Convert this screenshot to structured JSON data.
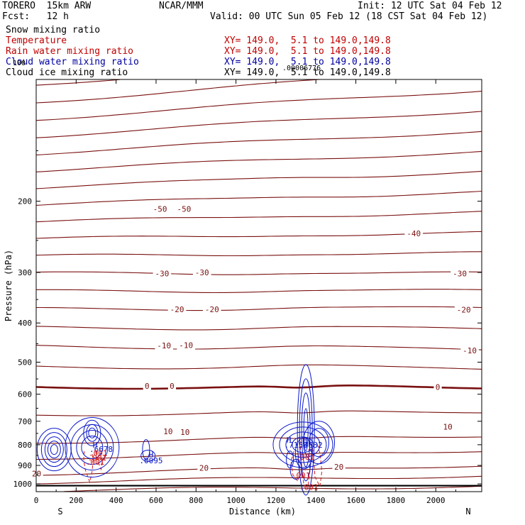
{
  "header": {
    "model": "TORERO  15km ARW",
    "institution": "NCAR/MMM",
    "init": "Init: 12 UTC Sat 04 Feb 12",
    "fcst": "Fcst:   12 h",
    "valid": "Valid: 00 UTC Sun 05 Feb 12 (18 CST Sat 04 Feb 12)",
    "fields": [
      {
        "label": "Snow mixing ratio",
        "color": "#000000",
        "xy": "",
        "overlay": ""
      },
      {
        "label": "Temperature",
        "color": "#c00000",
        "xy": "XY= 149.0,  5.1 to 149.0,149.8",
        "overlay": ""
      },
      {
        "label": "Rain water mixing ratio",
        "color": "#c00000",
        "xy": "XY= 149.0,  5.1 to 149.0,149.8",
        "overlay": ""
      },
      {
        "label": "Cloud water mixing ratio",
        "color": "#0000a0",
        "xy": "XY= 149.0,  5.1 to 149.0,149.8",
        "overlay": "100"
      },
      {
        "label": "Cloud ice mixing ratio",
        "color": "#000000",
        "xy": "XY= 149.0,  5.1 to 149.0,149.8",
        "overlay": ".00006776"
      }
    ]
  },
  "chart_data": {
    "type": "contour-cross-section",
    "xlabel": "Distance (km)",
    "ylabel": "Pressure (hPa)",
    "xlim": [
      0,
      2230
    ],
    "ylim": [
      1045,
      100
    ],
    "y_scale": "log",
    "x_ticks": [
      0,
      200,
      400,
      600,
      800,
      1000,
      1200,
      1400,
      1600,
      1800,
      2000
    ],
    "y_ticks": [
      200,
      300,
      400,
      500,
      600,
      700,
      800,
      900,
      1000
    ],
    "x_end_labels": {
      "left": "S",
      "right": "N"
    },
    "temperature_isotherms": [
      {
        "value": 20,
        "p_left": 943,
        "p_right": 898
      },
      {
        "value": 10,
        "p_left": 788,
        "p_right": 758
      },
      {
        "value": 0,
        "p_left": 576,
        "p_right": 576
      },
      {
        "value": -10,
        "p_left": 457,
        "p_right": 465
      },
      {
        "value": -20,
        "p_left": 370,
        "p_right": 368
      },
      {
        "value": -30,
        "p_left": 302,
        "p_right": 302
      },
      {
        "value": -40,
        "p_left": 248,
        "p_right": 240
      },
      {
        "value": -50,
        "p_left": 204,
        "p_right": 190
      }
    ],
    "temperature_labels": [
      {
        "text": "20",
        "x": 2.0,
        "p": 943
      },
      {
        "text": "20",
        "x": 840,
        "p": 913
      },
      {
        "text": "20",
        "x": 1515,
        "p": 908
      },
      {
        "text": "10",
        "x": 660,
        "p": 742
      },
      {
        "text": "10",
        "x": 745,
        "p": 745
      },
      {
        "text": "10",
        "x": 2060,
        "p": 722
      },
      {
        "text": "0",
        "x": 555,
        "p": 573
      },
      {
        "text": "0",
        "x": 680,
        "p": 573
      },
      {
        "text": "0",
        "x": 2010,
        "p": 576
      },
      {
        "text": "-10",
        "x": 640,
        "p": 455
      },
      {
        "text": "-10",
        "x": 750,
        "p": 454
      },
      {
        "text": "-10",
        "x": 2170,
        "p": 468
      },
      {
        "text": "-20",
        "x": 705,
        "p": 370
      },
      {
        "text": "-20",
        "x": 880,
        "p": 370
      },
      {
        "text": "-20",
        "x": 2140,
        "p": 371
      },
      {
        "text": "-30",
        "x": 630,
        "p": 302
      },
      {
        "text": "-30",
        "x": 830,
        "p": 300
      },
      {
        "text": "-30",
        "x": 2120,
        "p": 302
      },
      {
        "text": "-40",
        "x": 1890,
        "p": 240
      },
      {
        "text": "-50",
        "x": 620,
        "p": 209
      },
      {
        "text": "-50",
        "x": 740,
        "p": 209
      }
    ],
    "cloud_water_labels": [
      {
        "text": "H",
        "x": 295,
        "p": 800
      },
      {
        "text": ".6678",
        "x": 325,
        "p": 820
      },
      {
        "text": "H",
        "x": 575,
        "p": 845
      },
      {
        "text": ".0095",
        "x": 575,
        "p": 875
      },
      {
        "text": "H",
        "x": 1265,
        "p": 778
      },
      {
        "text": ".7158",
        "x": 1300,
        "p": 800
      },
      {
        "text": "H",
        "x": 1345,
        "p": 778
      },
      {
        "text": ".4832",
        "x": 1375,
        "p": 800
      }
    ],
    "rain_labels": [
      {
        "text": ".001",
        "x": 310,
        "p": 838
      },
      {
        "text": ".001",
        "x": 305,
        "p": 860
      },
      {
        "text": ".001",
        "x": 295,
        "p": 882
      },
      {
        "text": ".001",
        "x": 1345,
        "p": 858
      },
      {
        "text": ".001",
        "x": 1325,
        "p": 952
      },
      {
        "text": ".001",
        "x": 1365,
        "p": 1018
      }
    ]
  }
}
